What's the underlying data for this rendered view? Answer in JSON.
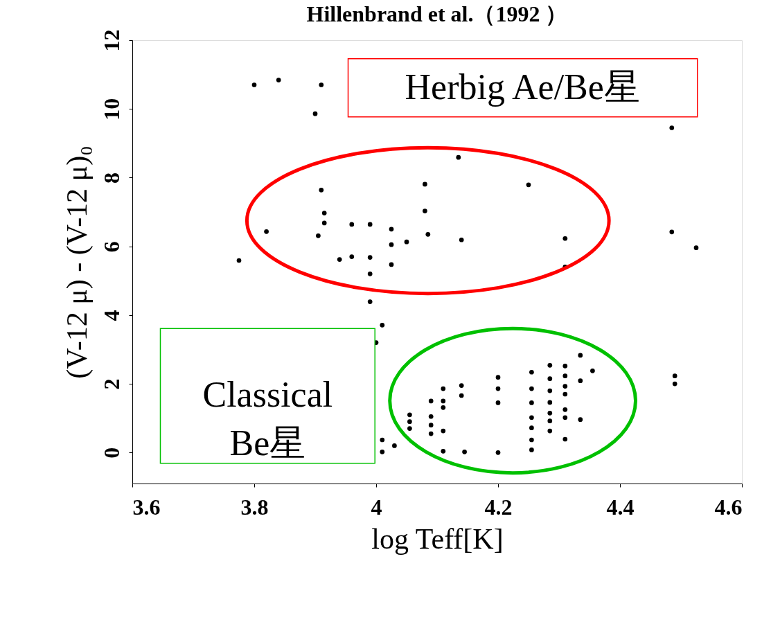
{
  "chart_data": {
    "type": "scatter",
    "title": "Hillenbrand et al.（1992 ）",
    "xlabel": "log Teff[K]",
    "ylabel": "(V-12 μ) - (V-12 μ)₀",
    "annotations": [
      "Herbig Ae/Be星",
      "Classical\n Be星"
    ],
    "xlim": [
      3.6,
      4.6
    ],
    "ylim": [
      -0.9,
      12
    ],
    "xticks": [
      3.6,
      3.8,
      4,
      4.2,
      4.4,
      4.6
    ],
    "yticks": [
      0,
      2,
      4,
      6,
      8,
      10,
      12
    ],
    "grid": false,
    "marker": "circle",
    "series": [
      {
        "color": "#000000",
        "x": [
          3.8,
          3.84,
          3.91,
          3.9,
          3.91,
          3.915,
          3.915,
          3.82,
          3.905,
          3.96,
          3.99,
          4.025,
          4.025,
          4.05,
          4.08,
          4.08,
          4.085,
          3.775,
          3.94,
          3.96,
          3.99,
          4.025,
          3.99,
          3.99,
          4.01,
          4.0,
          4.01,
          4.03,
          4.01,
          4.055,
          4.055,
          4.055,
          4.09,
          4.09,
          4.09,
          4.09,
          4.135,
          4.25,
          4.14,
          4.31,
          4.31,
          4.485,
          4.485,
          4.525,
          4.11,
          4.11,
          4.11,
          4.11,
          4.11,
          4.14,
          4.14,
          4.145,
          4.2,
          4.2,
          4.2,
          4.2,
          4.255,
          4.255,
          4.255,
          4.255,
          4.255,
          4.255,
          4.255,
          4.285,
          4.285,
          4.285,
          4.285,
          4.285,
          4.285,
          4.285,
          4.31,
          4.31,
          4.31,
          4.31,
          4.31,
          4.31,
          4.31,
          4.335,
          4.335,
          4.335,
          4.355,
          4.49,
          4.49
        ],
        "values": [
          10.7,
          10.84,
          10.7,
          9.86,
          7.64,
          6.97,
          6.68,
          6.43,
          6.31,
          6.64,
          6.64,
          6.5,
          6.05,
          6.13,
          7.81,
          7.03,
          6.35,
          5.59,
          5.62,
          5.7,
          5.68,
          5.47,
          5.2,
          4.39,
          3.71,
          3.2,
          0.37,
          0.2,
          0.02,
          1.1,
          0.9,
          0.7,
          1.5,
          1.05,
          0.8,
          0.55,
          8.59,
          7.79,
          6.19,
          6.23,
          5.4,
          9.45,
          6.42,
          5.96,
          1.86,
          1.5,
          1.31,
          0.63,
          0.04,
          1.95,
          1.66,
          0.02,
          2.19,
          1.86,
          1.45,
          0.0,
          2.34,
          1.86,
          1.45,
          1.02,
          0.72,
          0.37,
          0.08,
          2.54,
          2.15,
          1.8,
          1.46,
          1.15,
          0.92,
          0.63,
          2.52,
          2.23,
          1.93,
          1.7,
          1.25,
          1.02,
          0.39,
          2.83,
          2.09,
          0.96,
          2.38,
          2.23,
          2.0
        ]
      }
    ]
  }
}
